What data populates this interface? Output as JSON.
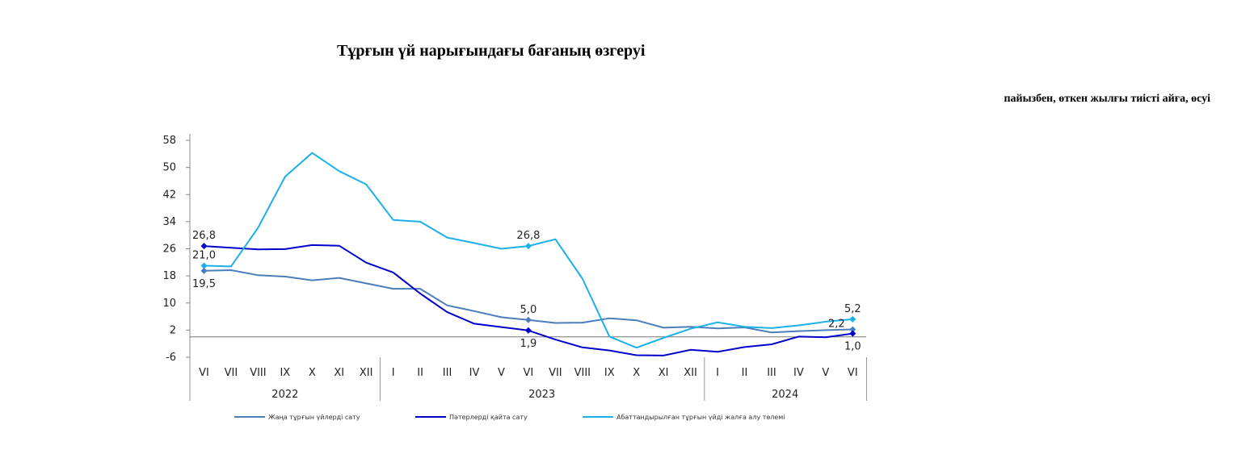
{
  "chart_data": {
    "type": "line",
    "title": "Тұрғын үй нарығындағы бағаның өзгеруі",
    "subtitle": "пайызбен, өткен жылғы тиісті айға, өсуі",
    "categories": [
      "VI",
      "VII",
      "VIII",
      "IX",
      "X",
      "XI",
      "XII",
      "I",
      "II",
      "III",
      "IV",
      "V",
      "VI",
      "VII",
      "VIII",
      "IX",
      "X",
      "XI",
      "XII",
      "I",
      "II",
      "III",
      "IV",
      "V",
      "VI"
    ],
    "years": [
      {
        "label": "2022",
        "from": 0,
        "to": 6
      },
      {
        "label": "2023",
        "from": 7,
        "to": 18
      },
      {
        "label": "2024",
        "from": 19,
        "to": 24
      }
    ],
    "ylim": [
      -6,
      58
    ],
    "yticks": [
      -6,
      2,
      10,
      18,
      26,
      34,
      42,
      50,
      58
    ],
    "series": [
      {
        "name": "Жаңа тұрғын үйлерді сату",
        "color": "#4a7ebb",
        "values": [
          19.5,
          19.7,
          18.2,
          17.8,
          16.7,
          17.4,
          15.8,
          14.2,
          14.2,
          9.3,
          7.6,
          5.8,
          5.0,
          4.1,
          4.2,
          5.5,
          4.9,
          2.7,
          3.0,
          2.5,
          2.8,
          1.3,
          1.7,
          2.0,
          2.2
        ]
      },
      {
        "name": "Пәтерлерді қайта сату",
        "color": "#0000cc",
        "values": [
          26.8,
          26.3,
          25.8,
          25.9,
          27.1,
          26.9,
          21.9,
          19.0,
          12.8,
          7.3,
          3.9,
          2.9,
          1.9,
          -0.8,
          -3.1,
          -4.0,
          -5.4,
          -5.5,
          -3.8,
          -4.4,
          -3.0,
          -2.2,
          0.1,
          -0.1,
          1.0
        ]
      },
      {
        "name": "Абаттандырылған тұрғын үйді жалға алу төлемі",
        "color": "#1ab0e8",
        "values": [
          21.0,
          20.8,
          32.2,
          47.3,
          54.3,
          48.9,
          45.0,
          34.5,
          34.0,
          29.3,
          27.7,
          26.0,
          26.8,
          28.8,
          17.2,
          0.1,
          -3.2,
          -0.3,
          2.4,
          4.3,
          3.0,
          2.6,
          3.4,
          4.5,
          5.2
        ]
      }
    ],
    "data_labels": [
      {
        "text": "26,8",
        "series": 1,
        "index": 0,
        "pos": "above"
      },
      {
        "text": "21,0",
        "series": 2,
        "index": 0,
        "pos": "above"
      },
      {
        "text": "19,5",
        "series": 0,
        "index": 0,
        "pos": "below"
      },
      {
        "text": "26,8",
        "series": 2,
        "index": 12,
        "pos": "above"
      },
      {
        "text": "5,0",
        "series": 0,
        "index": 12,
        "pos": "above"
      },
      {
        "text": "1,9",
        "series": 1,
        "index": 12,
        "pos": "below"
      },
      {
        "text": "5,2",
        "series": 2,
        "index": 24,
        "pos": "above"
      },
      {
        "text": "2,2",
        "series": 0,
        "index": 24,
        "pos": "aboveleft"
      },
      {
        "text": "1,0",
        "series": 1,
        "index": 24,
        "pos": "below"
      }
    ],
    "legend_position": "bottom",
    "grid": false
  }
}
